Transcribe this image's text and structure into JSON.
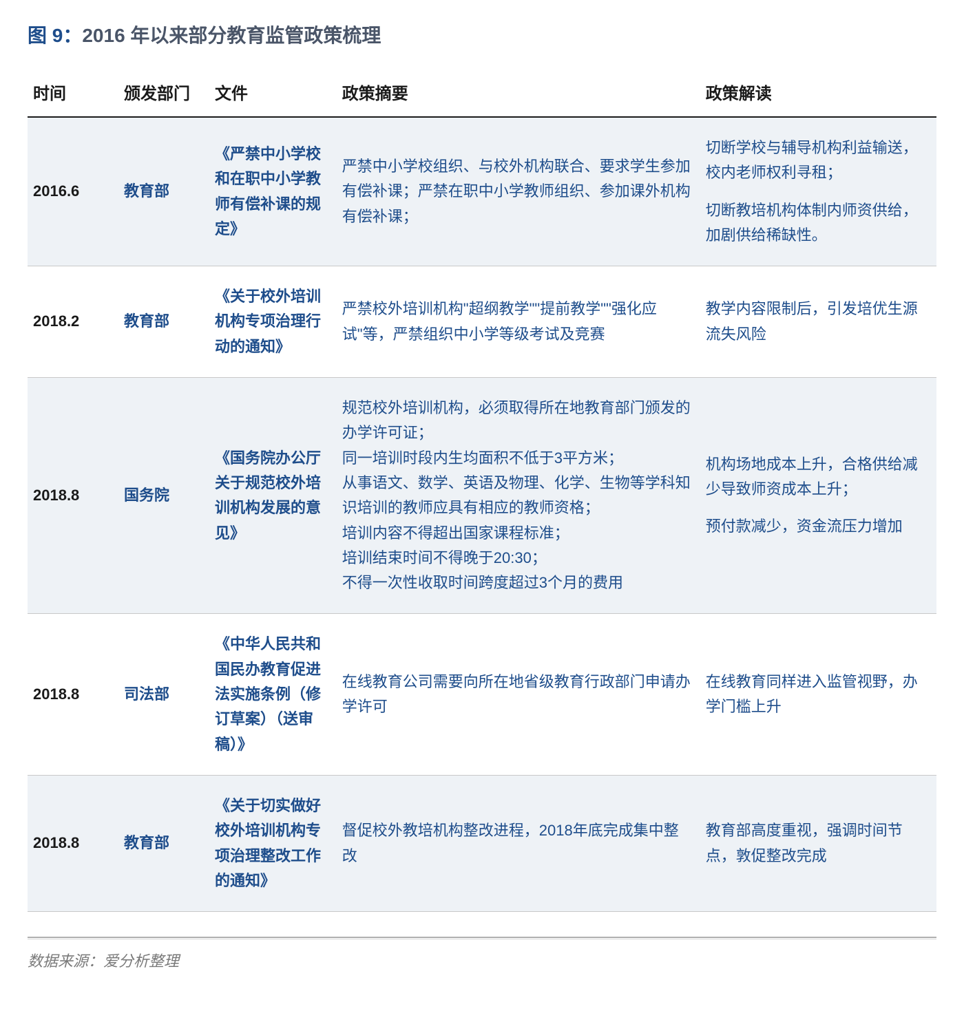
{
  "title": {
    "prefix": "图 9：",
    "text": "2016 年以来部分教育监管政策梳理"
  },
  "colors": {
    "accent": "#1e4d8b",
    "text": "#1a1a1a",
    "row_highlight": "#eef2f6",
    "border_heavy": "#1a1a1a",
    "border_light": "#c8c8c8",
    "muted": "#7a7a7a"
  },
  "columns": [
    "时间",
    "颁发部门",
    "文件",
    "政策摘要",
    "政策解读"
  ],
  "column_widths_pct": [
    10,
    10,
    14,
    40,
    26
  ],
  "rows": [
    {
      "highlight": true,
      "time": "2016.6",
      "dept": "教育部",
      "doc": "《严禁中小学校和在职中小学教师有偿补课的规定》",
      "summary": "严禁中小学校组织、与校外机构联合、要求学生参加有偿补课；严禁在职中小学教师组织、参加课外机构有偿补课；",
      "analysis_1": "切断学校与辅导机构利益输送，校内老师权利寻租；",
      "analysis_2": "切断教培机构体制内师资供给，加剧供给稀缺性。"
    },
    {
      "highlight": false,
      "time": "2018.2",
      "dept": "教育部",
      "doc": "《关于校外培训机构专项治理行动的通知》",
      "summary": "严禁校外培训机构\"超纲教学\"\"提前教学\"\"强化应试\"等，严禁组织中小学等级考试及竞赛",
      "analysis_1": "教学内容限制后，引发培优生源流失风险",
      "analysis_2": ""
    },
    {
      "highlight": true,
      "time": "2018.8",
      "dept": "国务院",
      "doc": "《国务院办公厅关于规范校外培训机构发展的意见》",
      "summary": "规范校外培训机构，必须取得所在地教育部门颁发的办学许可证；\n同一培训时段内生均面积不低于3平方米；\n从事语文、数学、英语及物理、化学、生物等学科知识培训的教师应具有相应的教师资格；\n培训内容不得超出国家课程标准；\n培训结束时间不得晚于20:30；\n不得一次性收取时间跨度超过3个月的费用",
      "analysis_1": "机构场地成本上升，合格供给减少导致师资成本上升；",
      "analysis_2": "预付款减少，资金流压力增加"
    },
    {
      "highlight": false,
      "time": "2018.8",
      "dept": "司法部",
      "doc": "《中华人民共和国民办教育促进法实施条例（修订草案）（送审稿）》",
      "summary": "在线教育公司需要向所在地省级教育行政部门申请办学许可",
      "analysis_1": "在线教育同样进入监管视野，办学门槛上升",
      "analysis_2": ""
    },
    {
      "highlight": true,
      "time": "2018.8",
      "dept": "教育部",
      "doc": "《关于切实做好校外培训机构专项治理整改工作的通知》",
      "summary": "督促校外教培机构整改进程，2018年底完成集中整改",
      "analysis_1": "教育部高度重视，强调时间节点，敦促整改完成",
      "analysis_2": ""
    }
  ],
  "source": "数据来源：爱分析整理"
}
